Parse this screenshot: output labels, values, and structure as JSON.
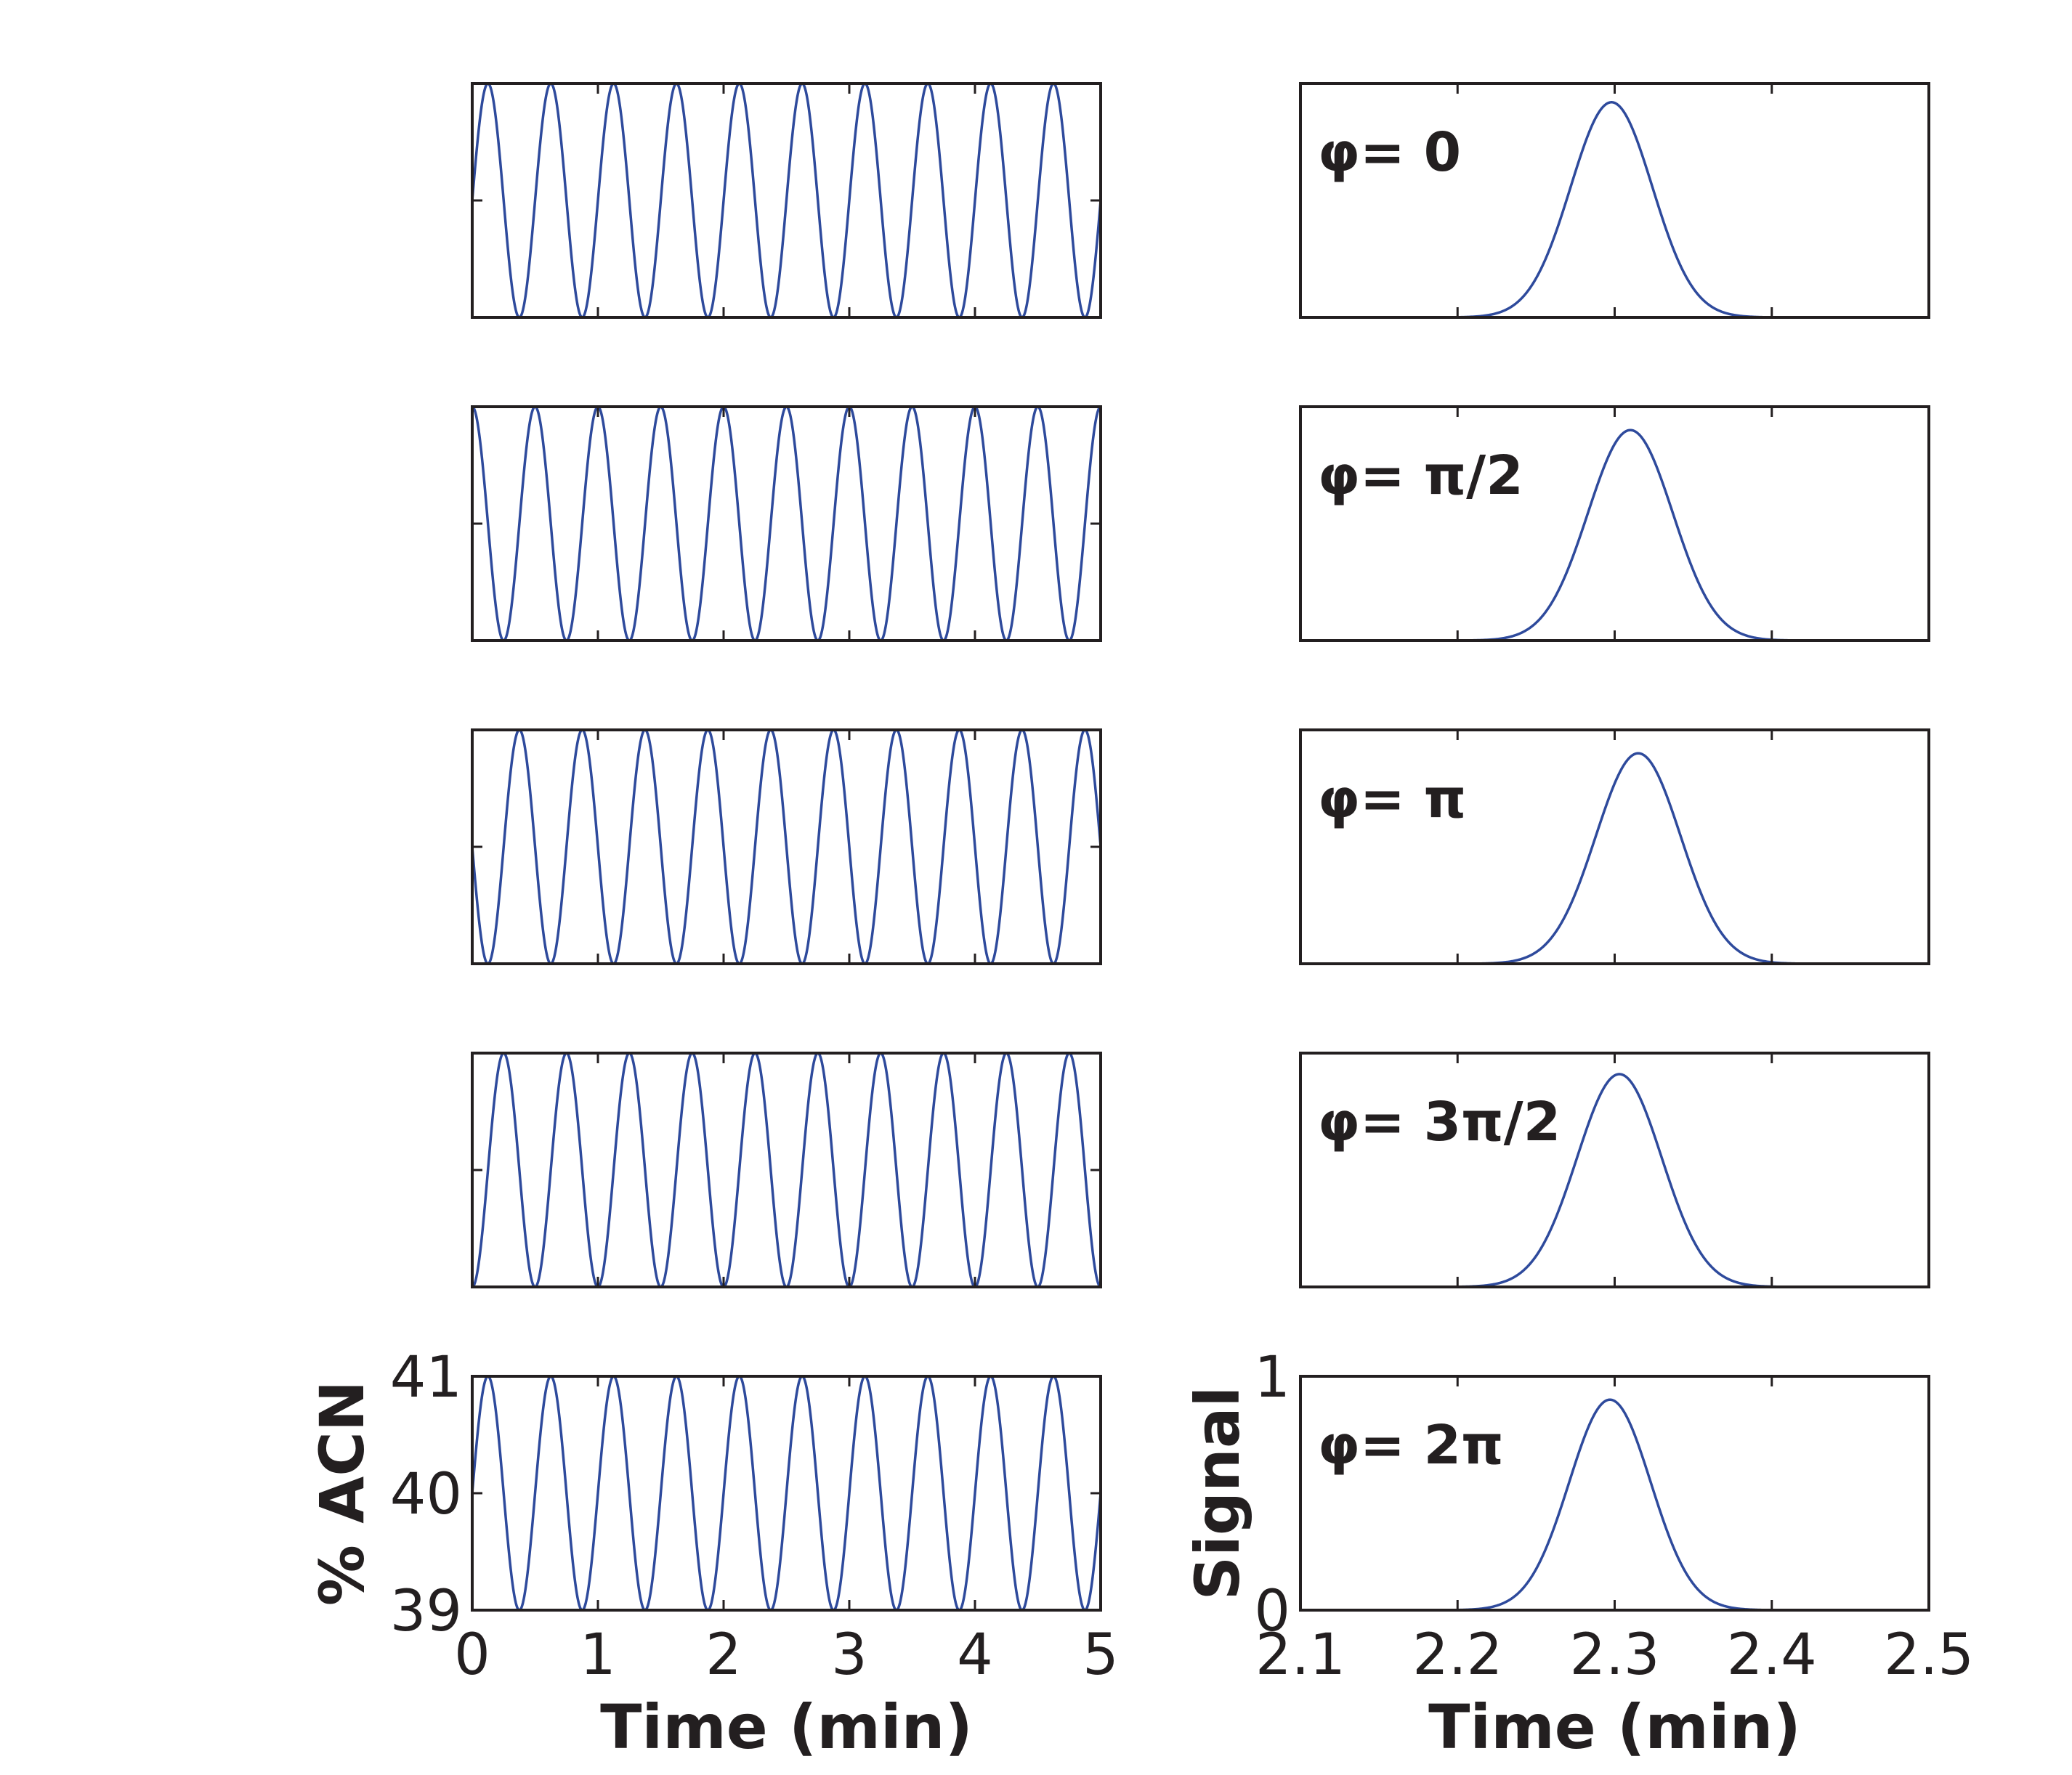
{
  "chart_data": [
    {
      "type": "line",
      "panel": "gradient-phi-0",
      "xlim": [
        0,
        5
      ],
      "ylim": [
        39,
        41
      ],
      "x_ticks": [
        0,
        1,
        2,
        3,
        4,
        5
      ],
      "y_ticks": [
        39,
        40,
        41
      ],
      "x_tick_labels": [],
      "y_tick_labels": [],
      "xlabel": "",
      "ylabel": "",
      "series": [
        {
          "offset": 40,
          "amplitude": 1,
          "frequency_per_min": 2,
          "phase": 0,
          "x_range": [
            0,
            5
          ]
        }
      ]
    },
    {
      "type": "line",
      "panel": "chromatogram-phi-0",
      "xlim": [
        2.1,
        2.5
      ],
      "ylim": [
        0,
        1
      ],
      "x_ticks": [
        2.1,
        2.2,
        2.3,
        2.4,
        2.5
      ],
      "y_ticks": [
        0,
        1
      ],
      "x_tick_labels": [],
      "y_tick_labels": [],
      "annotation": "φ= 0",
      "series": [
        {
          "peak_center": 2.298,
          "peak_height": 0.92,
          "peak_sigma": 0.026
        }
      ]
    },
    {
      "type": "line",
      "panel": "gradient-phi-pi-2",
      "xlim": [
        0,
        5
      ],
      "ylim": [
        39,
        41
      ],
      "x_ticks": [
        0,
        1,
        2,
        3,
        4,
        5
      ],
      "y_ticks": [
        39,
        40,
        41
      ],
      "x_tick_labels": [],
      "y_tick_labels": [],
      "series": [
        {
          "offset": 40,
          "amplitude": 1,
          "frequency_per_min": 2,
          "phase": 1.5708,
          "x_range": [
            0,
            5
          ]
        }
      ]
    },
    {
      "type": "line",
      "panel": "chromatogram-phi-pi-2",
      "xlim": [
        2.1,
        2.5
      ],
      "ylim": [
        0,
        1
      ],
      "x_ticks": [
        2.1,
        2.2,
        2.3,
        2.4,
        2.5
      ],
      "y_ticks": [
        0,
        1
      ],
      "x_tick_labels": [],
      "y_tick_labels": [],
      "annotation": "φ= π/2",
      "series": [
        {
          "peak_center": 2.31,
          "peak_height": 0.9,
          "peak_sigma": 0.027
        }
      ]
    },
    {
      "type": "line",
      "panel": "gradient-phi-pi",
      "xlim": [
        0,
        5
      ],
      "ylim": [
        39,
        41
      ],
      "x_ticks": [
        0,
        1,
        2,
        3,
        4,
        5
      ],
      "y_ticks": [
        39,
        40,
        41
      ],
      "x_tick_labels": [],
      "y_tick_labels": [],
      "series": [
        {
          "offset": 40,
          "amplitude": 1,
          "frequency_per_min": 2,
          "phase": 3.1416,
          "x_range": [
            0,
            5
          ]
        }
      ]
    },
    {
      "type": "line",
      "panel": "chromatogram-phi-pi",
      "xlim": [
        2.1,
        2.5
      ],
      "ylim": [
        0,
        1
      ],
      "x_ticks": [
        2.1,
        2.2,
        2.3,
        2.4,
        2.5
      ],
      "y_ticks": [
        0,
        1
      ],
      "x_tick_labels": [],
      "y_tick_labels": [],
      "annotation": "φ= π",
      "series": [
        {
          "peak_center": 2.315,
          "peak_height": 0.9,
          "peak_sigma": 0.027
        }
      ]
    },
    {
      "type": "line",
      "panel": "gradient-phi-3pi-2",
      "xlim": [
        0,
        5
      ],
      "ylim": [
        39,
        41
      ],
      "x_ticks": [
        0,
        1,
        2,
        3,
        4,
        5
      ],
      "y_ticks": [
        39,
        40,
        41
      ],
      "x_tick_labels": [],
      "y_tick_labels": [],
      "series": [
        {
          "offset": 40,
          "amplitude": 1,
          "frequency_per_min": 2,
          "phase": 4.7124,
          "x_range": [
            0,
            5
          ]
        }
      ]
    },
    {
      "type": "line",
      "panel": "chromatogram-phi-3pi-2",
      "xlim": [
        2.1,
        2.5
      ],
      "ylim": [
        0,
        1
      ],
      "x_ticks": [
        2.1,
        2.2,
        2.3,
        2.4,
        2.5
      ],
      "y_ticks": [
        0,
        1
      ],
      "x_tick_labels": [],
      "y_tick_labels": [],
      "annotation": "φ= 3π/2",
      "series": [
        {
          "peak_center": 2.303,
          "peak_height": 0.91,
          "peak_sigma": 0.027
        }
      ]
    },
    {
      "type": "line",
      "panel": "gradient-phi-2pi",
      "xlim": [
        0,
        5
      ],
      "ylim": [
        39,
        41
      ],
      "x_ticks": [
        0,
        1,
        2,
        3,
        4,
        5
      ],
      "y_ticks": [
        39,
        40,
        41
      ],
      "x_tick_labels": [
        "0",
        "1",
        "2",
        "3",
        "4",
        "5"
      ],
      "y_tick_labels": [
        "39",
        "40",
        "41"
      ],
      "xlabel": "Time (min)",
      "ylabel": "% ACN",
      "series": [
        {
          "offset": 40,
          "amplitude": 1,
          "frequency_per_min": 2,
          "phase": 6.2832,
          "x_range": [
            0,
            5
          ]
        }
      ]
    },
    {
      "type": "line",
      "panel": "chromatogram-phi-2pi",
      "xlim": [
        2.1,
        2.5
      ],
      "ylim": [
        0,
        1
      ],
      "x_ticks": [
        2.1,
        2.2,
        2.3,
        2.4,
        2.5
      ],
      "y_ticks": [
        0,
        1
      ],
      "x_tick_labels": [
        "2.1",
        "2.2",
        "2.3",
        "2.4",
        "2.5"
      ],
      "y_tick_labels": [
        "0",
        "1"
      ],
      "xlabel": "Time (min)",
      "ylabel": "Signal",
      "annotation": "φ= 2π",
      "series": [
        {
          "peak_center": 2.297,
          "peak_height": 0.9,
          "peak_sigma": 0.026
        }
      ]
    }
  ],
  "colors": {
    "trace": "#2e4a9c",
    "axes": "#231f20",
    "background": "#ffffff"
  }
}
